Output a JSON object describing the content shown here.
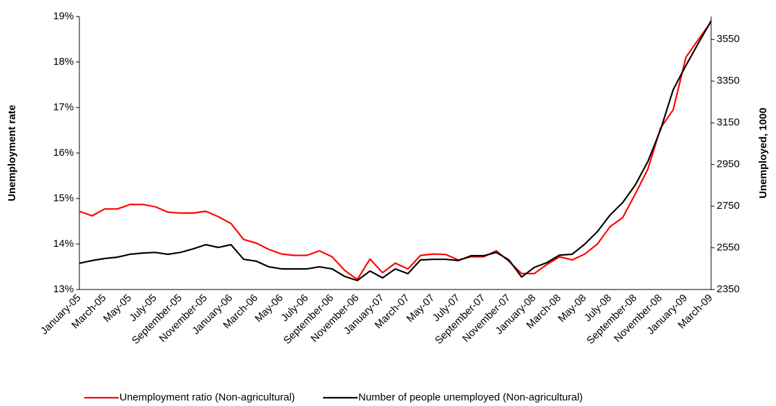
{
  "chart_data": {
    "type": "line",
    "categories": [
      "January-05",
      null,
      "March-05",
      null,
      "May-05",
      null,
      "July-05",
      null,
      "September-05",
      null,
      "November-05",
      null,
      "January-06",
      null,
      "March-06",
      null,
      "May-06",
      null,
      "July-06",
      null,
      "September-06",
      null,
      "November-06",
      null,
      "January-07",
      null,
      "March-07",
      null,
      "May-07",
      null,
      "July-07",
      null,
      "September-07",
      null,
      "November-07",
      null,
      "January-08",
      null,
      "March-08",
      null,
      "May-08",
      null,
      "July-08",
      null,
      "September-08",
      null,
      "November-08",
      null,
      "January-09",
      null,
      "March-09"
    ],
    "series": [
      {
        "name": "Unemployment ratio (Non-agricultural)",
        "color": "#ff0000",
        "values": [
          14.72,
          14.62,
          14.77,
          14.77,
          14.87,
          14.87,
          14.82,
          14.7,
          14.68,
          14.68,
          14.72,
          14.6,
          14.45,
          14.1,
          14.02,
          13.88,
          13.78,
          13.75,
          13.75,
          13.85,
          13.72,
          13.42,
          13.22,
          13.67,
          13.37,
          13.58,
          13.45,
          13.75,
          13.78,
          13.77,
          13.65,
          13.72,
          13.72,
          13.85,
          13.62,
          13.35,
          13.35,
          13.55,
          13.72,
          13.65,
          13.78,
          14.0,
          14.38,
          14.58,
          15.1,
          15.65,
          16.55,
          16.95,
          18.1,
          18.5,
          18.88
        ]
      },
      {
        "name": "Number of people unemployed (Non-agricultural)",
        "color": "#000000",
        "axis": "y2",
        "values": [
          2476,
          2489,
          2499,
          2505,
          2519,
          2525,
          2528,
          2519,
          2528,
          2545,
          2565,
          2552,
          2565,
          2495,
          2486,
          2459,
          2449,
          2449,
          2449,
          2459,
          2449,
          2413,
          2393,
          2439,
          2406,
          2449,
          2426,
          2492,
          2495,
          2495,
          2489,
          2512,
          2512,
          2528,
          2492,
          2410,
          2456,
          2479,
          2515,
          2519,
          2568,
          2628,
          2707,
          2767,
          2852,
          2965,
          3117,
          3309,
          3424,
          3533,
          3639
        ]
      }
    ],
    "y_label": "Unemployment rate",
    "y2_label": "Unemployed, 1000",
    "ylim": [
      13,
      19
    ],
    "yticks": [
      {
        "value": 13,
        "label": "13%"
      },
      {
        "value": 14,
        "label": "14%"
      },
      {
        "value": 15,
        "label": "15%"
      },
      {
        "value": 16,
        "label": "16%"
      },
      {
        "value": 17,
        "label": "17%"
      },
      {
        "value": 18,
        "label": "18%"
      },
      {
        "value": 19,
        "label": "19%"
      }
    ],
    "y2lim": [
      2350,
      3660
    ],
    "y2ticks": [
      2350,
      2550,
      2750,
      2950,
      3150,
      3350,
      3550
    ],
    "grid": false,
    "legend": "bottom"
  }
}
